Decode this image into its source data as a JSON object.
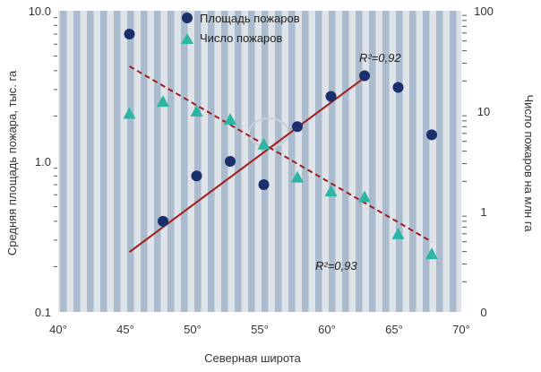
{
  "chart_data": {
    "type": "scatter",
    "xlabel": "Северная широта",
    "ylabel_left": "Средняя площадь пожара, тыс. га",
    "ylabel_right": "Число пожаров на млн га",
    "xlim": [
      40,
      70
    ],
    "x_ticks": [
      "40°",
      "45°",
      "50°",
      "55°",
      "60°",
      "65°",
      "70°"
    ],
    "y_left_scale": "log",
    "y_left_lim": [
      0.1,
      10
    ],
    "y_left_ticks": [
      "10.0",
      "1.0",
      "0.1"
    ],
    "y_right_scale": "log",
    "y_right_ticks": [
      "100",
      "10",
      "1",
      "0"
    ],
    "grid": "vertical stripes",
    "legend_position": "top-center",
    "series": [
      {
        "name": "Площадь пожаров",
        "axis": "left",
        "marker": "circle",
        "color": "#1a2f6b",
        "x": [
          45.3,
          47.8,
          50.3,
          52.8,
          55.3,
          57.8,
          60.3,
          62.8,
          65.3,
          67.8
        ],
        "y": [
          7.0,
          0.4,
          0.8,
          1.0,
          0.7,
          1.7,
          2.7,
          3.7,
          3.1,
          1.5
        ]
      },
      {
        "name": "Число пожаров",
        "axis": "right",
        "marker": "triangle",
        "color": "#2bb5a2",
        "x": [
          45.3,
          47.8,
          50.3,
          52.8,
          55.3,
          57.8,
          60.3,
          62.8,
          65.3,
          67.8
        ],
        "y": [
          9.5,
          12.5,
          10.0,
          8.3,
          4.7,
          2.2,
          1.6,
          1.4,
          0.6,
          0.38
        ]
      }
    ],
    "trendlines": [
      {
        "series": "Площадь пожаров",
        "style": "solid",
        "color": "#a11c1c",
        "x": [
          45.3,
          62.8
        ],
        "y": [
          0.25,
          3.6
        ],
        "label": "R²=0,92"
      },
      {
        "series": "Число пожаров",
        "style": "dashed",
        "color": "#a11c1c",
        "x": [
          45.3,
          67.8
        ],
        "y": [
          28,
          0.5
        ],
        "label": "R²=0,93"
      }
    ]
  }
}
